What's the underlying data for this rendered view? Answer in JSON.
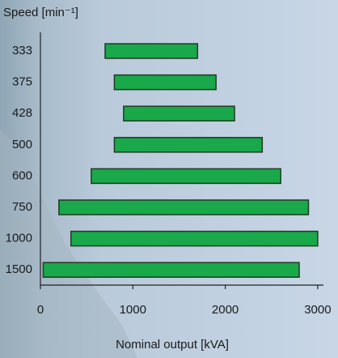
{
  "chart_data": {
    "type": "range-bar",
    "title": "Speed [min⁻¹]",
    "x_label": "Nominal output [kVA]",
    "categories": [
      "333",
      "375",
      "428",
      "500",
      "600",
      "750",
      "1000",
      "1500"
    ],
    "ranges": [
      [
        700,
        1700
      ],
      [
        800,
        1900
      ],
      [
        900,
        2100
      ],
      [
        800,
        2400
      ],
      [
        550,
        2600
      ],
      [
        200,
        2900
      ],
      [
        330,
        3000
      ],
      [
        30,
        2800
      ]
    ],
    "color": "#19a84a",
    "xlim": [
      0,
      3050
    ],
    "xticks": [
      0,
      1000,
      2000,
      3000
    ]
  }
}
